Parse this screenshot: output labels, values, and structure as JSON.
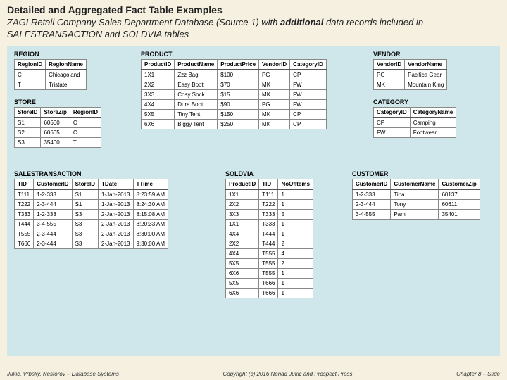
{
  "heading1": "Detailed and Aggregated Fact Table Examples",
  "heading2_a": "ZAGI Retail Company Sales Department Database (Source 1) with ",
  "heading2_b": "additional",
  "heading2_c": " data records included in SALESTRANSACTION and SOLDVIA tables",
  "footer_left": "Jukić, Vrbsky, Nestorov – Database Systems",
  "footer_center": "Copyright (c) 2016 Nenad Jukic and Prospect Press",
  "footer_right": "Chapter 8 – Slide",
  "tables": {
    "region": {
      "title": "REGION",
      "columns": [
        "RegionID",
        "RegionName"
      ],
      "rows": [
        [
          "C",
          "Chicagoland"
        ],
        [
          "T",
          "Tristate"
        ]
      ]
    },
    "store": {
      "title": "STORE",
      "columns": [
        "StoreID",
        "StoreZip",
        "RegionID"
      ],
      "rows": [
        [
          "S1",
          "60600",
          "C"
        ],
        [
          "S2",
          "60605",
          "C"
        ],
        [
          "S3",
          "35400",
          "T"
        ]
      ]
    },
    "product": {
      "title": "PRODUCT",
      "columns": [
        "ProductID",
        "ProductName",
        "ProductPrice",
        "VendorID",
        "CategoryID"
      ],
      "rows": [
        [
          "1X1",
          "Zzz Bag",
          "$100",
          "PG",
          "CP"
        ],
        [
          "2X2",
          "Easy Boot",
          "$70",
          "MK",
          "FW"
        ],
        [
          "3X3",
          "Cosy Sock",
          "$15",
          "MK",
          "FW"
        ],
        [
          "4X4",
          "Dura Boot",
          "$90",
          "PG",
          "FW"
        ],
        [
          "5X5",
          "Tiny Tent",
          "$150",
          "MK",
          "CP"
        ],
        [
          "6X6",
          "Biggy Tent",
          "$250",
          "MK",
          "CP"
        ]
      ]
    },
    "vendor": {
      "title": "VENDOR",
      "columns": [
        "VendorID",
        "VendorName"
      ],
      "rows": [
        [
          "PG",
          "Pacifica Gear"
        ],
        [
          "MK",
          "Mountain King"
        ]
      ]
    },
    "category": {
      "title": "CATEGORY",
      "columns": [
        "CategoryID",
        "CategoryName"
      ],
      "rows": [
        [
          "CP",
          "Camping"
        ],
        [
          "FW",
          "Footwear"
        ]
      ]
    },
    "salestx": {
      "title": "SALESTRANSACTION",
      "columns": [
        "TID",
        "CustomerID",
        "StoreID",
        "TDate",
        "TTime"
      ],
      "rows": [
        [
          "T111",
          "1-2-333",
          "S1",
          "1-Jan-2013",
          "8:23:59 AM"
        ],
        [
          "T222",
          "2-3-444",
          "S1",
          "1-Jan-2013",
          "8:24:30 AM"
        ],
        [
          "T333",
          "1-2-333",
          "S3",
          "2-Jan-2013",
          "8:15:08 AM"
        ],
        [
          "T444",
          "3-4-555",
          "S3",
          "2-Jan-2013",
          "8:20:33 AM"
        ],
        [
          "T555",
          "2-3-444",
          "S3",
          "2-Jan-2013",
          "8:30:00 AM"
        ],
        [
          "T666",
          "2-3-444",
          "S3",
          "2-Jan-2013",
          "9:30:00 AM"
        ]
      ]
    },
    "soldvia": {
      "title": "SOLDVIA",
      "columns": [
        "ProductID",
        "TID",
        "NoOfItems"
      ],
      "rows": [
        [
          "1X1",
          "T111",
          "1"
        ],
        [
          "2X2",
          "T222",
          "1"
        ],
        [
          "3X3",
          "T333",
          "5"
        ],
        [
          "1X1",
          "T333",
          "1"
        ],
        [
          "4X4",
          "T444",
          "1"
        ],
        [
          "2X2",
          "T444",
          "2"
        ],
        [
          "4X4",
          "T555",
          "4"
        ],
        [
          "5X5",
          "T555",
          "2"
        ],
        [
          "6X6",
          "T555",
          "1"
        ],
        [
          "5X5",
          "T666",
          "1"
        ],
        [
          "6X6",
          "T666",
          "1"
        ]
      ]
    },
    "customer": {
      "title": "CUSTOMER",
      "columns": [
        "CustomerID",
        "CustomerName",
        "CustomerZip"
      ],
      "rows": [
        [
          "1-2-333",
          "Tina",
          "60137"
        ],
        [
          "2-3-444",
          "Tony",
          "60611"
        ],
        [
          "3-4-555",
          "Pam",
          "35401"
        ]
      ]
    }
  }
}
